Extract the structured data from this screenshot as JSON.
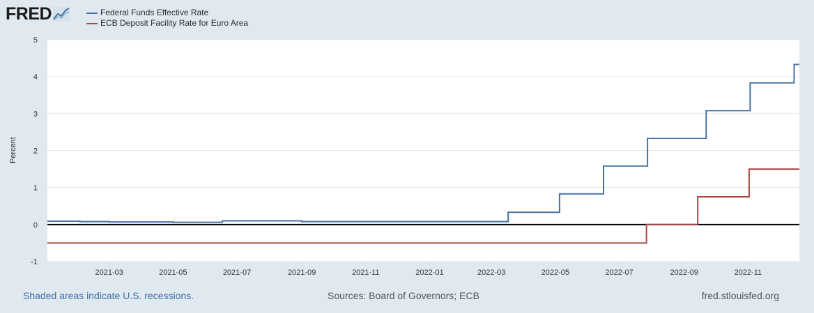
{
  "logo": {
    "text": "FRED"
  },
  "legend": [
    {
      "label": "Federal Funds Effective Rate",
      "color": "#4572a7"
    },
    {
      "label": "ECB Deposit Facility Rate for Euro Area",
      "color": "#aa4643"
    }
  ],
  "footer": {
    "left": "Shaded areas indicate U.S. recessions.",
    "center": "Sources: Board of Governors; ECB",
    "right": "fred.stlouisfed.org"
  },
  "chart_data": {
    "type": "line",
    "ylabel": "Percent",
    "ylim": [
      -1,
      5
    ],
    "yticks": [
      -1,
      0,
      1,
      2,
      3,
      4,
      5
    ],
    "xlim": [
      "2021-01-01",
      "2022-12-20"
    ],
    "xticks": [
      "2021-03",
      "2021-05",
      "2021-07",
      "2021-09",
      "2021-11",
      "2022-01",
      "2022-03",
      "2022-05",
      "2022-07",
      "2022-09",
      "2022-11"
    ],
    "grid": true,
    "zero_line": true,
    "legend_position": "top-left",
    "series": [
      {
        "name": "Federal Funds Effective Rate",
        "color": "#4572a7",
        "step": true,
        "points": [
          [
            "2021-01-01",
            0.09
          ],
          [
            "2021-02-01",
            0.08
          ],
          [
            "2021-03-01",
            0.07
          ],
          [
            "2021-04-01",
            0.07
          ],
          [
            "2021-05-01",
            0.06
          ],
          [
            "2021-06-01",
            0.06
          ],
          [
            "2021-06-17",
            0.1
          ],
          [
            "2021-08-01",
            0.1
          ],
          [
            "2021-09-01",
            0.08
          ],
          [
            "2021-10-01",
            0.08
          ],
          [
            "2021-11-01",
            0.08
          ],
          [
            "2021-12-01",
            0.08
          ],
          [
            "2022-01-01",
            0.08
          ],
          [
            "2022-02-01",
            0.08
          ],
          [
            "2022-03-17",
            0.33
          ],
          [
            "2022-05-05",
            0.83
          ],
          [
            "2022-06-16",
            1.58
          ],
          [
            "2022-07-28",
            2.33
          ],
          [
            "2022-09-22",
            3.08
          ],
          [
            "2022-11-03",
            3.83
          ],
          [
            "2022-12-15",
            4.33
          ],
          [
            "2022-12-20",
            4.33
          ]
        ]
      },
      {
        "name": "ECB Deposit Facility Rate for Euro Area",
        "color": "#aa4643",
        "step": true,
        "points": [
          [
            "2021-01-01",
            -0.5
          ],
          [
            "2022-07-27",
            0.0
          ],
          [
            "2022-09-14",
            0.75
          ],
          [
            "2022-11-02",
            1.5
          ],
          [
            "2022-12-20",
            1.5
          ]
        ]
      }
    ]
  }
}
